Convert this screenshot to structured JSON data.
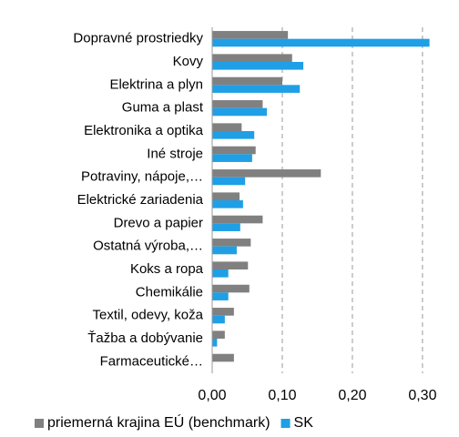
{
  "chart_data": {
    "type": "hbar",
    "categories": [
      "Dopravné prostriedky",
      "Kovy",
      "Elektrina  a plyn",
      "Guma a plast",
      "Elektronika a optika",
      "Iné stroje",
      "Potraviny, nápoje,…",
      "Elektrické zariadenia",
      "Drevo a papier",
      "Ostatná výroba,…",
      "Koks a ropa",
      "Chemikálie",
      "Textil, odevy, koža",
      "Ťažba a dobývanie",
      "Farmaceutické…"
    ],
    "series": [
      {
        "name": "priemerná krajina EÚ (benchmark)",
        "color": "#808080",
        "values": [
          0.108,
          0.114,
          0.1,
          0.072,
          0.042,
          0.062,
          0.155,
          0.039,
          0.072,
          0.055,
          0.051,
          0.053,
          0.031,
          0.018,
          0.031
        ]
      },
      {
        "name": "SK",
        "color": "#1f9fe6",
        "values": [
          0.31,
          0.13,
          0.125,
          0.078,
          0.06,
          0.057,
          0.047,
          0.044,
          0.04,
          0.035,
          0.023,
          0.023,
          0.018,
          0.007,
          0
        ]
      }
    ],
    "xlim": [
      0,
      0.33
    ],
    "xticks": [
      {
        "value": 0,
        "label": "0,00"
      },
      {
        "value": 0.1,
        "label": "0,10"
      },
      {
        "value": 0.2,
        "label": "0,20"
      },
      {
        "value": 0.3,
        "label": "0,30"
      }
    ],
    "grid": true,
    "legend": "bottom"
  }
}
